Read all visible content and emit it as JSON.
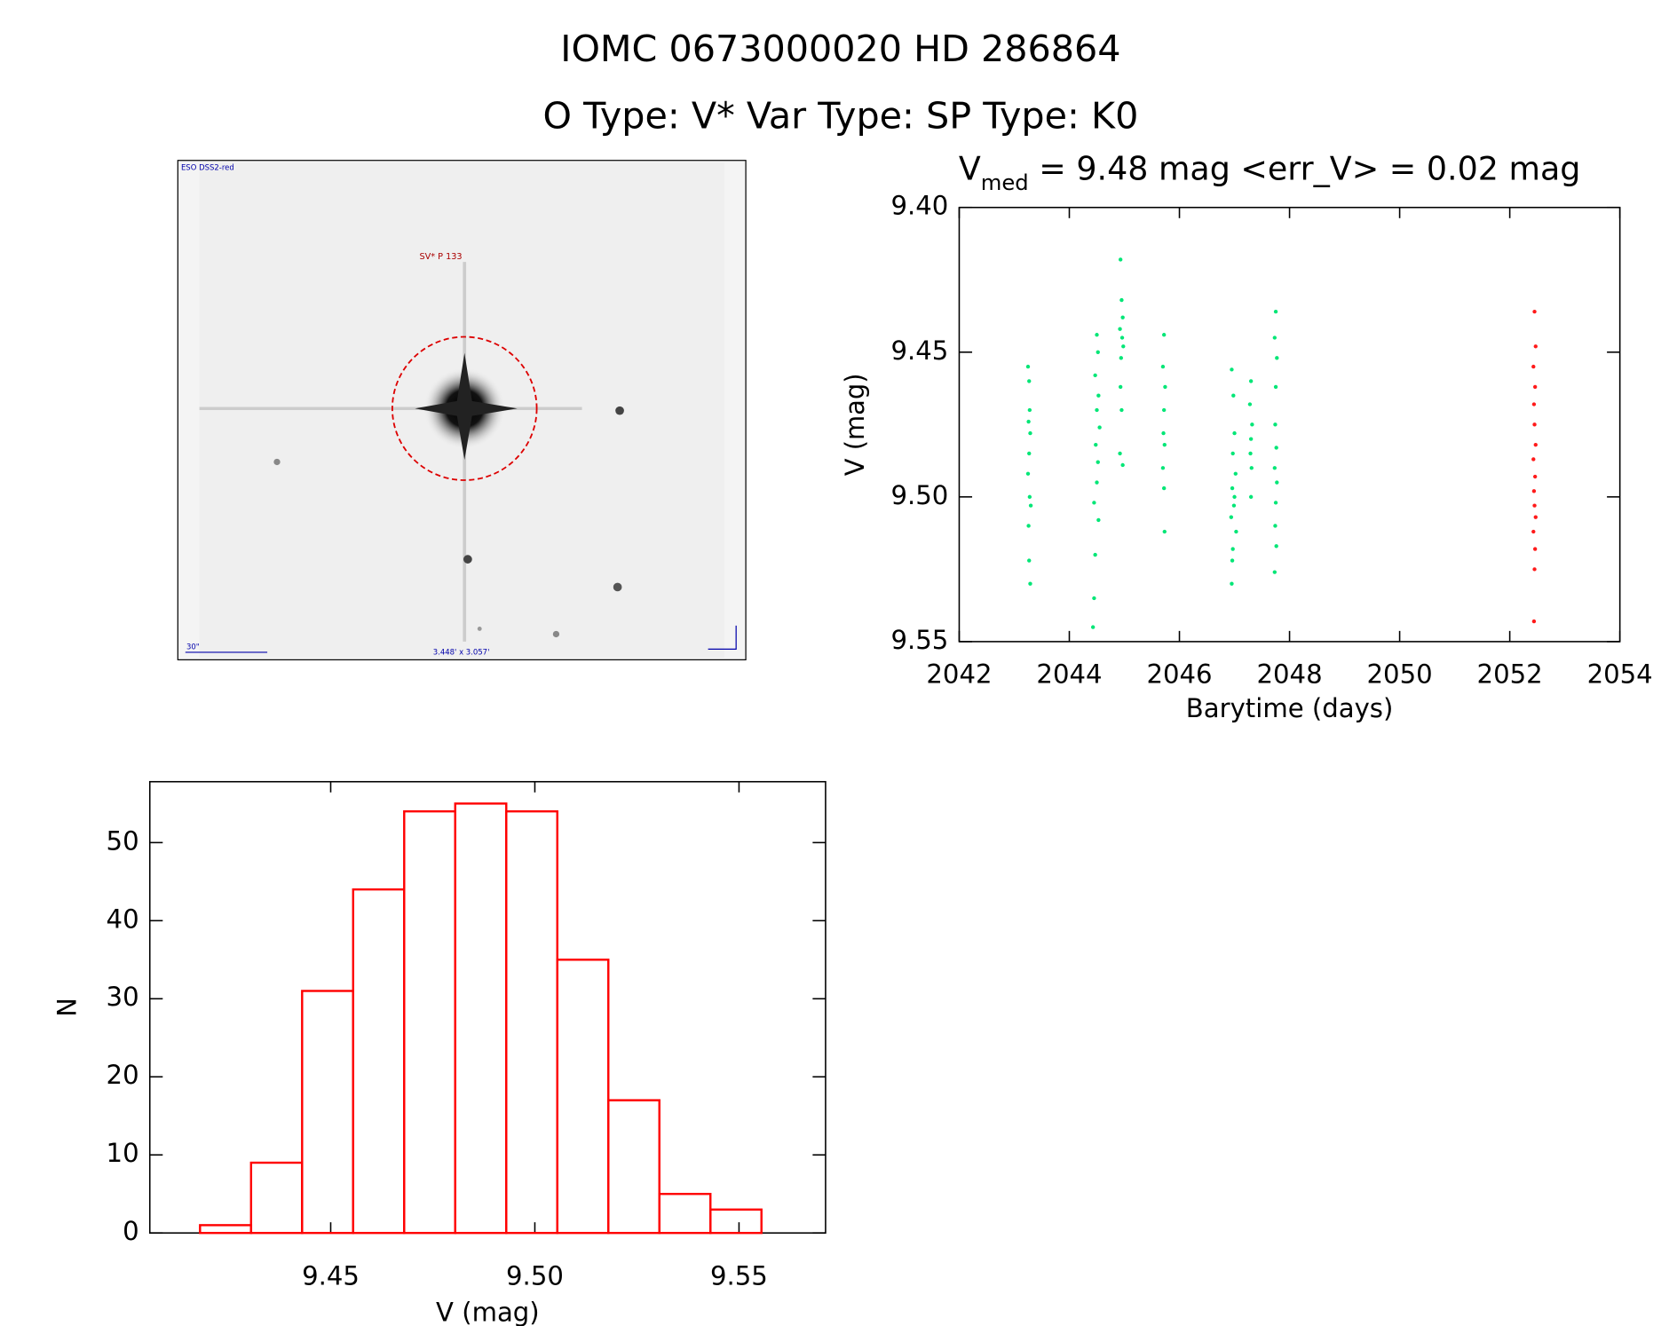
{
  "header": {
    "title": "IOMC 0673000020    HD 286864",
    "subtitle": "O Type: V*  Var Type:    SP Type: K0"
  },
  "image": {
    "labels": [
      "ESO DSS2-red",
      "SV* P 133",
      "30\"",
      "3.448' x 3.057'"
    ]
  },
  "chart_data": [
    {
      "type": "scatter",
      "title_parts": [
        "V",
        "med",
        " = 9.48 mag <err_V> = 0.02 mag"
      ],
      "x_label": "Barytime (days)",
      "y_label": "V (mag)",
      "xlim": [
        2042,
        2054
      ],
      "ylim": [
        9.55,
        9.4
      ],
      "inverted_y": true,
      "xticks": [
        2042,
        2044,
        2046,
        2048,
        2050,
        2052,
        2054
      ],
      "yticks": [
        {
          "value": 9.4,
          "label": "9.40"
        },
        9.45,
        {
          "value": 9.5,
          "label": "9.50"
        },
        9.55
      ],
      "series": [
        {
          "name": "good",
          "color": "#00e676",
          "x": [
            2043.25,
            2043.27,
            2043.28,
            2043.26,
            2043.29,
            2043.27,
            2043.25,
            2043.28,
            2043.3,
            2043.26,
            2043.27,
            2043.29,
            2044.5,
            2044.52,
            2044.47,
            2044.53,
            2044.5,
            2044.55,
            2044.48,
            2044.52,
            2044.5,
            2044.45,
            2044.53,
            2044.47,
            2044.45,
            2044.43,
            2044.93,
            2044.95,
            2044.97,
            2044.92,
            2044.96,
            2044.98,
            2044.94,
            2044.93,
            2044.95,
            2044.92,
            2044.97,
            2045.72,
            2045.7,
            2045.74,
            2045.72,
            2045.71,
            2045.73,
            2045.7,
            2045.72,
            2045.73,
            2046.95,
            2046.98,
            2047.0,
            2046.97,
            2047.02,
            2046.96,
            2047.0,
            2046.99,
            2046.94,
            2047.03,
            2046.97,
            2046.96,
            2046.95,
            2047.3,
            2047.28,
            2047.32,
            2047.3,
            2047.29,
            2047.31,
            2047.3,
            2047.75,
            2047.73,
            2047.77,
            2047.75,
            2047.74,
            2047.76,
            2047.73,
            2047.77,
            2047.75,
            2047.74,
            2047.76,
            2047.73
          ],
          "values": [
            9.455,
            9.46,
            9.47,
            9.474,
            9.478,
            9.485,
            9.492,
            9.5,
            9.503,
            9.51,
            9.522,
            9.53,
            9.444,
            9.45,
            9.458,
            9.465,
            9.47,
            9.476,
            9.482,
            9.488,
            9.495,
            9.502,
            9.508,
            9.52,
            9.535,
            9.545,
            9.418,
            9.432,
            9.438,
            9.442,
            9.445,
            9.448,
            9.452,
            9.462,
            9.47,
            9.485,
            9.489,
            9.444,
            9.455,
            9.462,
            9.47,
            9.478,
            9.482,
            9.49,
            9.497,
            9.512,
            9.456,
            9.465,
            9.478,
            9.485,
            9.492,
            9.497,
            9.5,
            9.503,
            9.507,
            9.512,
            9.518,
            9.522,
            9.53,
            9.46,
            9.468,
            9.475,
            9.48,
            9.485,
            9.49,
            9.5,
            9.436,
            9.445,
            9.452,
            9.462,
            9.475,
            9.483,
            9.49,
            9.495,
            9.502,
            9.51,
            9.517,
            9.526
          ]
        },
        {
          "name": "flagged",
          "color": "#ff1a1a",
          "x": [
            2052.45,
            2052.47,
            2052.43,
            2052.46,
            2052.44,
            2052.45,
            2052.47,
            2052.43,
            2052.46,
            2052.44,
            2052.45,
            2052.47,
            2052.43,
            2052.46,
            2052.45,
            2052.44
          ],
          "values": [
            9.436,
            9.448,
            9.455,
            9.462,
            9.468,
            9.475,
            9.482,
            9.487,
            9.493,
            9.498,
            9.503,
            9.507,
            9.512,
            9.518,
            9.525,
            9.543
          ]
        }
      ]
    },
    {
      "type": "histogram",
      "x_label": "V (mag)",
      "y_label": "N",
      "bins": [
        9.418,
        9.4305,
        9.443,
        9.4555,
        9.468,
        9.4805,
        9.493,
        9.5055,
        9.518,
        9.5305,
        9.543,
        9.5555
      ],
      "values": [
        1,
        9,
        31,
        44,
        54,
        55,
        54,
        35,
        17,
        5,
        3
      ],
      "color": "#ff0000",
      "xlim": [
        9.4057,
        9.5712
      ],
      "ylim": [
        0,
        57.8
      ],
      "xticks": [
        9.45,
        {
          "value": 9.5,
          "label": "9.50"
        },
        9.55
      ],
      "yticks": [
        0,
        10,
        20,
        30,
        40,
        50
      ]
    }
  ]
}
